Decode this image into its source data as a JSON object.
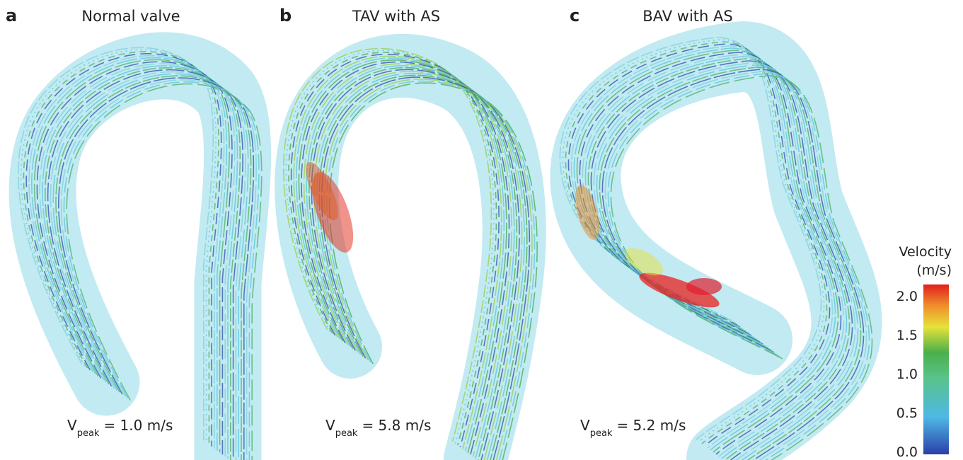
{
  "panels": [
    {
      "letter": "a",
      "title": "Normal valve",
      "peak": {
        "symbol": "V",
        "subscript": "peak",
        "text": "= 1.0 m/s"
      }
    },
    {
      "letter": "b",
      "title": "TAV with AS",
      "peak": {
        "symbol": "V",
        "subscript": "peak",
        "text": "= 5.8 m/s"
      }
    },
    {
      "letter": "c",
      "title": "BAV with AS",
      "peak": {
        "symbol": "V",
        "subscript": "peak",
        "text": "= 5.2 m/s"
      }
    }
  ],
  "colorbar": {
    "title": "Velocity",
    "unit": "(m/s)",
    "ticks": [
      "2.0",
      "1.5",
      "1.0",
      "0.5",
      "0.0"
    ]
  }
}
